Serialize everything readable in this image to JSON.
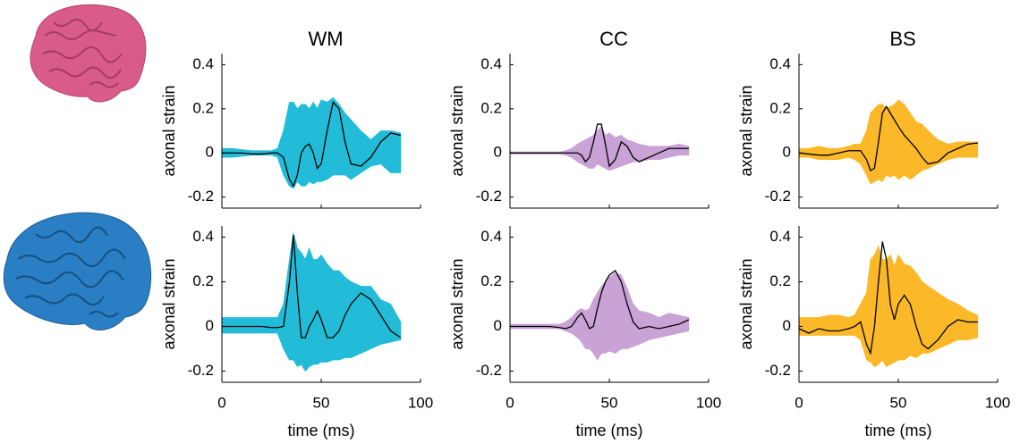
{
  "chart_data": [
    {
      "type": "band-line",
      "title": "WM",
      "ylabel": "axonal strain",
      "xtick_labels": false,
      "x": [
        0,
        5,
        10,
        15,
        20,
        25,
        28,
        31,
        34,
        36,
        38,
        40,
        42,
        44,
        46,
        48,
        50,
        53,
        56,
        59,
        62,
        65,
        70,
        75,
        80,
        85,
        90
      ],
      "values": [
        0,
        0,
        0,
        -0.005,
        -0.005,
        0,
        0,
        -0.02,
        -0.12,
        -0.15,
        -0.1,
        0,
        0.03,
        0.04,
        0,
        -0.07,
        -0.05,
        0.1,
        0.23,
        0.2,
        0.05,
        -0.05,
        -0.06,
        -0.02,
        0.05,
        0.09,
        0.08
      ],
      "band_upper": [
        0.02,
        0.02,
        0.015,
        0.01,
        0.01,
        0.01,
        0.02,
        0.1,
        0.23,
        0.23,
        0.2,
        0.22,
        0.22,
        0.2,
        0.23,
        0.2,
        0.24,
        0.23,
        0.25,
        0.22,
        0.18,
        0.15,
        0.1,
        0.06,
        0.1,
        0.1,
        0.09
      ],
      "band_lower": [
        -0.02,
        -0.02,
        -0.015,
        -0.01,
        -0.01,
        -0.01,
        -0.02,
        -0.1,
        -0.15,
        -0.16,
        -0.13,
        -0.15,
        -0.15,
        -0.13,
        -0.14,
        -0.13,
        -0.13,
        -0.12,
        -0.1,
        -0.1,
        -0.1,
        -0.12,
        -0.09,
        -0.06,
        -0.05,
        -0.09,
        -0.09
      ],
      "band_color": "#22bcd8",
      "line_color": "#000000",
      "xlim": [
        0,
        100
      ],
      "ylim": [
        -0.25,
        0.45
      ],
      "xticks": [
        0,
        50,
        100
      ],
      "yticks": [
        -0.2,
        0,
        0.2,
        0.4
      ]
    },
    {
      "type": "band-line",
      "title": "CC",
      "ylabel": "axonal strain",
      "xtick_labels": false,
      "x": [
        0,
        5,
        10,
        15,
        20,
        25,
        28,
        31,
        34,
        36,
        38,
        40,
        42,
        44,
        46,
        48,
        50,
        53,
        56,
        59,
        62,
        65,
        70,
        75,
        80,
        85,
        90
      ],
      "values": [
        0,
        0,
        0,
        0,
        0,
        0,
        0,
        0,
        0,
        -0.01,
        -0.04,
        -0.02,
        0.05,
        0.13,
        0.13,
        0.04,
        -0.06,
        -0.03,
        0.05,
        0.03,
        -0.02,
        -0.04,
        -0.02,
        0,
        0.02,
        0.02,
        0.02
      ],
      "band_upper": [
        0.005,
        0.005,
        0.005,
        0.005,
        0.005,
        0.005,
        0.01,
        0.02,
        0.04,
        0.05,
        0.06,
        0.07,
        0.08,
        0.1,
        0.12,
        0.08,
        0.09,
        0.07,
        0.08,
        0.06,
        0.05,
        0.04,
        0.03,
        0.03,
        0.03,
        0.04,
        0.03
      ],
      "band_lower": [
        -0.005,
        -0.005,
        -0.005,
        -0.005,
        -0.005,
        -0.005,
        -0.01,
        -0.02,
        -0.04,
        -0.05,
        -0.06,
        -0.07,
        -0.07,
        -0.05,
        -0.06,
        -0.07,
        -0.08,
        -0.07,
        -0.06,
        -0.05,
        -0.04,
        -0.04,
        -0.03,
        -0.03,
        -0.02,
        -0.01,
        -0.01
      ],
      "band_color": "#c9a2d6",
      "line_color": "#000000",
      "xlim": [
        0,
        100
      ],
      "ylim": [
        -0.25,
        0.45
      ],
      "xticks": [
        0,
        50,
        100
      ],
      "yticks": [
        -0.2,
        0,
        0.2,
        0.4
      ]
    },
    {
      "type": "band-line",
      "title": "BS",
      "ylabel": "axonal strain",
      "xtick_labels": false,
      "x": [
        0,
        5,
        10,
        15,
        20,
        25,
        28,
        31,
        34,
        36,
        38,
        40,
        42,
        44,
        46,
        48,
        50,
        53,
        56,
        59,
        62,
        65,
        70,
        75,
        80,
        85,
        90
      ],
      "values": [
        0,
        -0.005,
        -0.01,
        -0.01,
        0,
        0.01,
        0.01,
        0.01,
        -0.03,
        -0.08,
        -0.07,
        0.05,
        0.18,
        0.21,
        0.18,
        0.15,
        0.12,
        0.08,
        0.05,
        0.02,
        -0.02,
        -0.05,
        -0.04,
        0,
        0.02,
        0.04,
        0.045
      ],
      "band_upper": [
        0.02,
        0.02,
        0.03,
        0.02,
        0.02,
        0.03,
        0.04,
        0.04,
        0.1,
        0.18,
        0.2,
        0.22,
        0.22,
        0.2,
        0.21,
        0.22,
        0.24,
        0.22,
        0.18,
        0.14,
        0.13,
        0.1,
        0.06,
        0.04,
        0.05,
        0.05,
        0.05
      ],
      "band_lower": [
        -0.02,
        -0.02,
        -0.03,
        -0.03,
        -0.03,
        -0.02,
        -0.03,
        -0.05,
        -0.1,
        -0.14,
        -0.13,
        -0.12,
        -0.13,
        -0.1,
        -0.11,
        -0.1,
        -0.12,
        -0.1,
        -0.12,
        -0.1,
        -0.08,
        -0.07,
        -0.05,
        -0.03,
        -0.02,
        -0.02,
        -0.02
      ],
      "band_color": "#fbb829",
      "line_color": "#000000",
      "xlim": [
        0,
        100
      ],
      "ylim": [
        -0.25,
        0.45
      ],
      "xticks": [
        0,
        50,
        100
      ],
      "yticks": [
        -0.2,
        0,
        0.2,
        0.4
      ]
    },
    {
      "type": "band-line",
      "ylabel": "axonal strain",
      "xlabel": "time (ms)",
      "xtick_labels": true,
      "x": [
        0,
        5,
        10,
        15,
        20,
        25,
        28,
        31,
        34,
        36,
        38,
        40,
        42,
        44,
        46,
        48,
        50,
        53,
        56,
        59,
        62,
        65,
        70,
        75,
        80,
        85,
        90
      ],
      "values": [
        0,
        0,
        0,
        0,
        0,
        -0.005,
        -0.005,
        0,
        0.2,
        0.41,
        0.15,
        -0.05,
        -0.05,
        0,
        0.03,
        0.07,
        0.03,
        -0.05,
        -0.05,
        -0.02,
        0.05,
        0.1,
        0.15,
        0.12,
        0.05,
        -0.02,
        -0.05
      ],
      "band_upper": [
        0.04,
        0.04,
        0.04,
        0.04,
        0.04,
        0.04,
        0.04,
        0.1,
        0.3,
        0.42,
        0.35,
        0.33,
        0.3,
        0.35,
        0.3,
        0.3,
        0.32,
        0.28,
        0.25,
        0.25,
        0.22,
        0.2,
        0.18,
        0.18,
        0.12,
        0.1,
        0.02
      ],
      "band_lower": [
        -0.03,
        -0.03,
        -0.03,
        -0.03,
        -0.03,
        -0.03,
        -0.03,
        -0.1,
        -0.15,
        -0.15,
        -0.18,
        -0.17,
        -0.2,
        -0.18,
        -0.17,
        -0.17,
        -0.16,
        -0.16,
        -0.15,
        -0.15,
        -0.14,
        -0.14,
        -0.12,
        -0.1,
        -0.08,
        -0.07,
        -0.06
      ],
      "band_color": "#22bcd8",
      "line_color": "#000000",
      "xlim": [
        0,
        100
      ],
      "ylim": [
        -0.25,
        0.45
      ],
      "xticks": [
        0,
        50,
        100
      ],
      "yticks": [
        -0.2,
        0,
        0.2,
        0.4
      ]
    },
    {
      "type": "band-line",
      "ylabel": "axonal strain",
      "xlabel": "time (ms)",
      "xtick_labels": true,
      "x": [
        0,
        5,
        10,
        15,
        20,
        25,
        28,
        31,
        34,
        36,
        38,
        40,
        42,
        44,
        46,
        48,
        50,
        53,
        56,
        59,
        62,
        65,
        70,
        75,
        80,
        85,
        90
      ],
      "values": [
        0,
        0,
        0,
        0,
        0,
        -0.005,
        -0.01,
        0,
        0.04,
        0.06,
        0.03,
        -0.01,
        0,
        0.08,
        0.15,
        0.2,
        0.23,
        0.25,
        0.2,
        0.1,
        0.02,
        -0.01,
        0,
        -0.01,
        0,
        0.01,
        0.03
      ],
      "band_upper": [
        0.01,
        0.01,
        0.01,
        0.01,
        0.01,
        0.01,
        0.02,
        0.04,
        0.07,
        0.08,
        0.07,
        0.08,
        0.12,
        0.15,
        0.18,
        0.2,
        0.22,
        0.24,
        0.23,
        0.17,
        0.1,
        0.07,
        0.06,
        0.04,
        0.06,
        0.05,
        0.04
      ],
      "band_lower": [
        -0.01,
        -0.01,
        -0.01,
        -0.01,
        -0.01,
        -0.01,
        -0.02,
        -0.03,
        -0.05,
        -0.07,
        -0.1,
        -0.1,
        -0.12,
        -0.15,
        -0.12,
        -0.12,
        -0.11,
        -0.12,
        -0.1,
        -0.1,
        -0.09,
        -0.08,
        -0.06,
        -0.05,
        -0.04,
        -0.03,
        -0.02
      ],
      "band_color": "#c9a2d6",
      "line_color": "#000000",
      "xlim": [
        0,
        100
      ],
      "ylim": [
        -0.25,
        0.45
      ],
      "xticks": [
        0,
        50,
        100
      ],
      "yticks": [
        -0.2,
        0,
        0.2,
        0.4
      ]
    },
    {
      "type": "band-line",
      "ylabel": "axonal strain",
      "xlabel": "time (ms)",
      "xtick_labels": true,
      "x": [
        0,
        5,
        10,
        15,
        20,
        25,
        28,
        31,
        34,
        36,
        38,
        40,
        42,
        44,
        46,
        48,
        50,
        53,
        56,
        59,
        62,
        65,
        70,
        75,
        80,
        85,
        90
      ],
      "values": [
        -0.01,
        -0.03,
        -0.01,
        -0.02,
        -0.02,
        -0.01,
        0,
        0.02,
        -0.08,
        -0.12,
        0,
        0.2,
        0.38,
        0.3,
        0.1,
        0.03,
        0.1,
        0.14,
        0.1,
        0,
        -0.08,
        -0.1,
        -0.06,
        0,
        0.03,
        0.02,
        0.02
      ],
      "band_upper": [
        0.04,
        0.04,
        0.04,
        0.05,
        0.05,
        0.04,
        0.05,
        0.1,
        0.15,
        0.3,
        0.32,
        0.36,
        0.3,
        0.3,
        0.32,
        0.27,
        0.32,
        0.28,
        0.27,
        0.24,
        0.2,
        0.18,
        0.15,
        0.12,
        0.1,
        0.07,
        0.05
      ],
      "band_lower": [
        -0.04,
        -0.04,
        -0.04,
        -0.04,
        -0.04,
        -0.04,
        -0.04,
        -0.06,
        -0.15,
        -0.16,
        -0.18,
        -0.17,
        -0.15,
        -0.18,
        -0.17,
        -0.16,
        -0.15,
        -0.15,
        -0.13,
        -0.14,
        -0.12,
        -0.12,
        -0.1,
        -0.08,
        -0.06,
        -0.06,
        -0.05
      ],
      "band_color": "#fbb829",
      "line_color": "#000000",
      "xlim": [
        0,
        100
      ],
      "ylim": [
        -0.25,
        0.45
      ],
      "xticks": [
        0,
        50,
        100
      ],
      "yticks": [
        -0.2,
        0,
        0.2,
        0.4
      ]
    }
  ]
}
